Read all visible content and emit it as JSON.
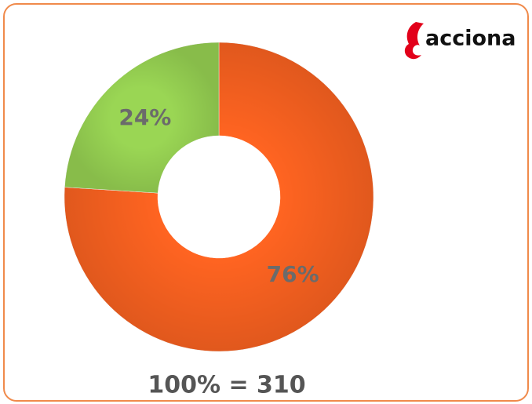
{
  "logo": "acciona",
  "chart_data": {
    "type": "pie",
    "donut": true,
    "values": [
      76,
      24
    ],
    "value_labels": [
      "76%",
      "24%"
    ],
    "colors": [
      "#ff6421",
      "#9ad654"
    ],
    "annotation": "100% = 310"
  }
}
